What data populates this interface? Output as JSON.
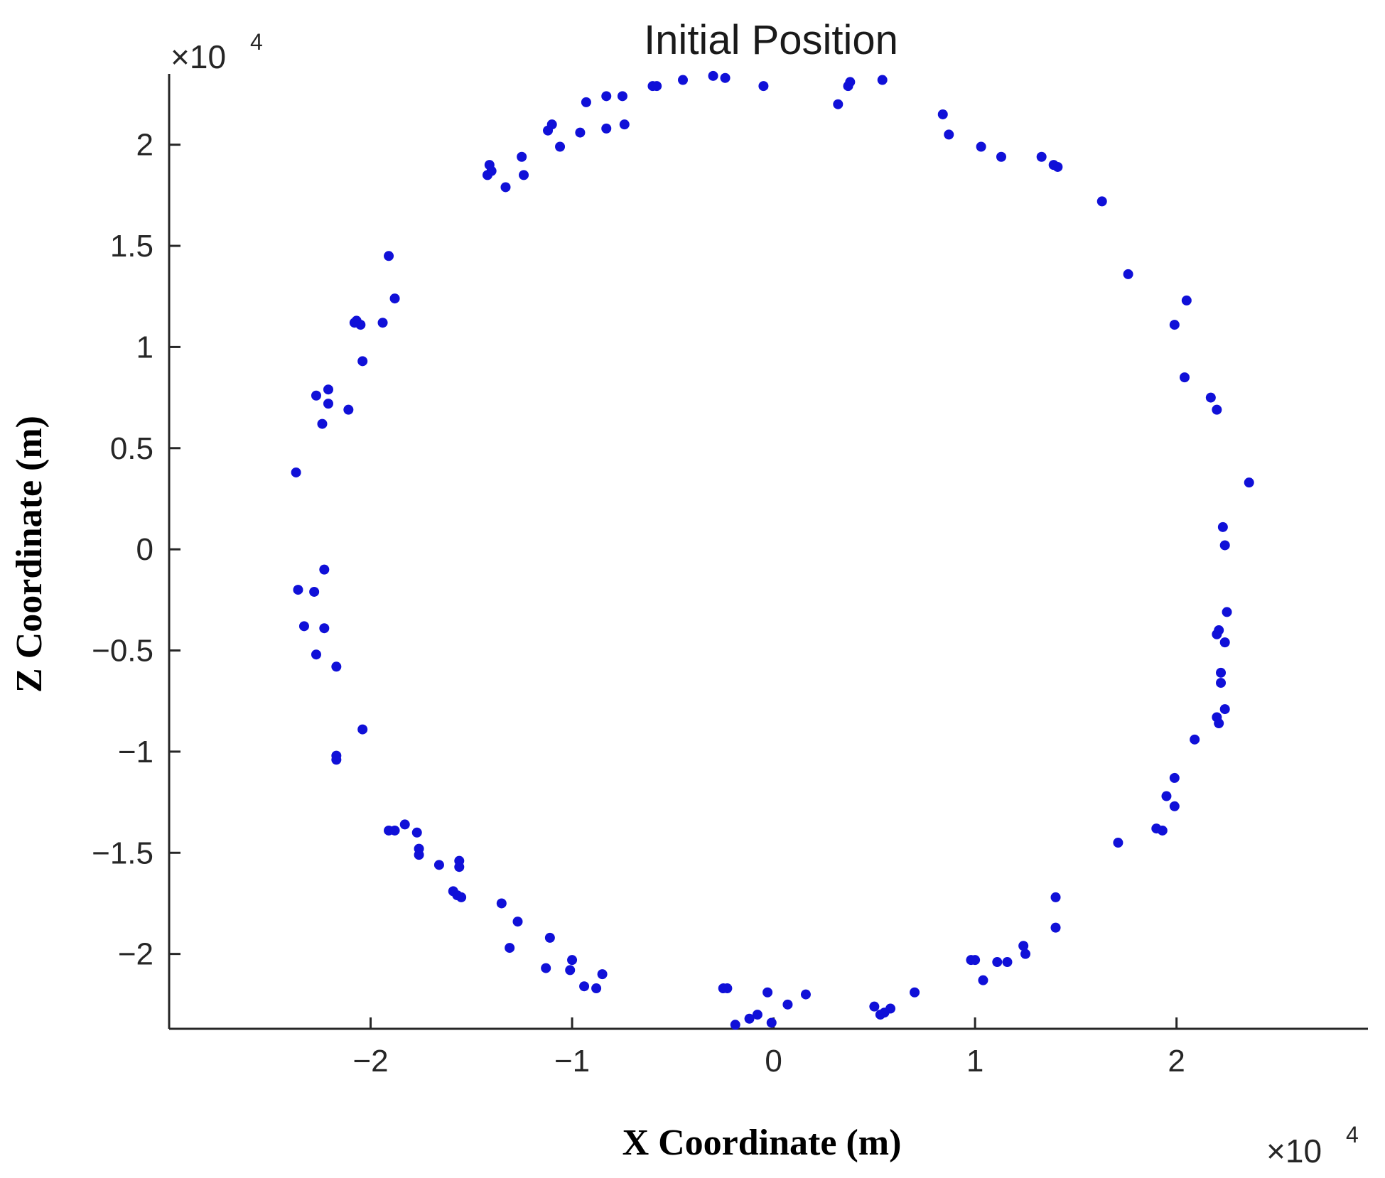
{
  "chart_data": {
    "type": "scatter",
    "title": "Initial Position",
    "xlabel": "X Coordinate (m)",
    "ylabel": "Z Coordinate (m)",
    "x_multiplier": "×10",
    "x_multiplier_exp": "4",
    "y_multiplier": "×10",
    "y_multiplier_exp": "4",
    "xlim": [
      -3.0,
      2.95
    ],
    "ylim": [
      -2.37,
      2.35
    ],
    "x_ticks": [
      -2,
      -1,
      0,
      1,
      2
    ],
    "x_tick_labels": [
      "−2",
      "−1",
      "0",
      "1",
      "2"
    ],
    "y_ticks": [
      -2,
      -1.5,
      -1,
      -0.5,
      0,
      0.5,
      1,
      1.5,
      2
    ],
    "y_tick_labels": [
      "−2",
      "−1.5",
      "−1",
      "−0.5",
      "0",
      "0.5",
      "1",
      "1.5",
      "2"
    ],
    "grid": false,
    "marker_color": "#1010d8",
    "axis_color": "#262626",
    "series": [
      {
        "points": [
          [
            -0.3,
            2.34
          ],
          [
            -0.24,
            2.33
          ],
          [
            -0.05,
            2.29
          ],
          [
            0.32,
            2.2
          ],
          [
            0.37,
            2.29
          ],
          [
            0.38,
            2.31
          ],
          [
            0.54,
            2.32
          ],
          [
            -0.58,
            2.29
          ],
          [
            -0.6,
            2.29
          ],
          [
            -0.45,
            2.32
          ],
          [
            -0.75,
            2.24
          ],
          [
            -0.83,
            2.24
          ],
          [
            -0.93,
            2.21
          ],
          [
            -0.74,
            2.1
          ],
          [
            -0.83,
            2.08
          ],
          [
            -0.96,
            2.06
          ],
          [
            -1.1,
            2.1
          ],
          [
            -1.12,
            2.07
          ],
          [
            -1.06,
            1.99
          ],
          [
            -1.25,
            1.94
          ],
          [
            -1.24,
            1.85
          ],
          [
            -1.41,
            1.9
          ],
          [
            -1.42,
            1.85
          ],
          [
            -1.4,
            1.87
          ],
          [
            -1.33,
            1.79
          ],
          [
            0.84,
            2.15
          ],
          [
            0.87,
            2.05
          ],
          [
            1.03,
            1.99
          ],
          [
            1.13,
            1.94
          ],
          [
            1.33,
            1.94
          ],
          [
            1.39,
            1.9
          ],
          [
            1.41,
            1.89
          ],
          [
            1.63,
            1.72
          ],
          [
            1.76,
            1.36
          ],
          [
            1.99,
            1.11
          ],
          [
            2.05,
            1.23
          ],
          [
            2.04,
            0.85
          ],
          [
            2.17,
            0.75
          ],
          [
            2.2,
            0.69
          ],
          [
            2.36,
            0.33
          ],
          [
            2.23,
            0.11
          ],
          [
            2.24,
            0.02
          ],
          [
            2.25,
            -0.31
          ],
          [
            2.21,
            -0.4
          ],
          [
            2.2,
            -0.42
          ],
          [
            2.24,
            -0.46
          ],
          [
            2.22,
            -0.61
          ],
          [
            2.22,
            -0.66
          ],
          [
            2.24,
            -0.79
          ],
          [
            2.2,
            -0.83
          ],
          [
            2.21,
            -0.86
          ],
          [
            2.09,
            -0.94
          ],
          [
            1.99,
            -1.13
          ],
          [
            1.95,
            -1.22
          ],
          [
            1.99,
            -1.27
          ],
          [
            1.9,
            -1.38
          ],
          [
            1.93,
            -1.39
          ],
          [
            1.71,
            -1.45
          ],
          [
            1.4,
            -1.72
          ],
          [
            1.4,
            -1.87
          ],
          [
            1.24,
            -1.96
          ],
          [
            1.25,
            -2.0
          ],
          [
            1.16,
            -2.04
          ],
          [
            1.11,
            -2.04
          ],
          [
            1.0,
            -2.03
          ],
          [
            0.98,
            -2.03
          ],
          [
            1.04,
            -2.13
          ],
          [
            0.7,
            -2.19
          ],
          [
            0.58,
            -2.27
          ],
          [
            0.55,
            -2.29
          ],
          [
            0.5,
            -2.26
          ],
          [
            0.53,
            -2.3
          ],
          [
            0.16,
            -2.2
          ],
          [
            0.07,
            -2.25
          ],
          [
            -0.03,
            -2.19
          ],
          [
            -0.01,
            -2.34
          ],
          [
            -0.08,
            -2.3
          ],
          [
            -0.12,
            -2.32
          ],
          [
            -0.19,
            -2.35
          ],
          [
            -0.23,
            -2.17
          ],
          [
            -0.25,
            -2.17
          ],
          [
            -0.85,
            -2.1
          ],
          [
            -0.88,
            -2.17
          ],
          [
            -0.94,
            -2.16
          ],
          [
            -1.0,
            -2.03
          ],
          [
            -1.01,
            -2.08
          ],
          [
            -1.11,
            -1.92
          ],
          [
            -1.13,
            -2.07
          ],
          [
            -1.27,
            -1.84
          ],
          [
            -1.31,
            -1.97
          ],
          [
            -1.35,
            -1.75
          ],
          [
            -1.55,
            -1.72
          ],
          [
            -1.56,
            -1.54
          ],
          [
            -1.56,
            -1.57
          ],
          [
            -1.59,
            -1.69
          ],
          [
            -1.57,
            -1.71
          ],
          [
            -1.66,
            -1.56
          ],
          [
            -1.76,
            -1.48
          ],
          [
            -1.77,
            -1.4
          ],
          [
            -1.76,
            -1.51
          ],
          [
            -1.83,
            -1.36
          ],
          [
            -1.88,
            -1.39
          ],
          [
            -1.91,
            -1.39
          ],
          [
            -2.04,
            -0.89
          ],
          [
            -2.17,
            -1.02
          ],
          [
            -2.17,
            -1.04
          ],
          [
            -2.17,
            -0.58
          ],
          [
            -2.27,
            -0.52
          ],
          [
            -2.33,
            -0.38
          ],
          [
            -2.23,
            -0.39
          ],
          [
            -2.36,
            -0.2
          ],
          [
            -2.28,
            -0.21
          ],
          [
            -2.23,
            -0.1
          ],
          [
            -2.37,
            0.38
          ],
          [
            -2.27,
            0.76
          ],
          [
            -2.21,
            0.79
          ],
          [
            -2.21,
            0.72
          ],
          [
            -2.24,
            0.62
          ],
          [
            -2.11,
            0.69
          ],
          [
            -2.04,
            0.93
          ],
          [
            -2.05,
            1.11
          ],
          [
            -2.08,
            1.12
          ],
          [
            -2.07,
            1.13
          ],
          [
            -1.94,
            1.12
          ],
          [
            -1.88,
            1.24
          ],
          [
            -1.91,
            1.45
          ]
        ]
      }
    ]
  }
}
